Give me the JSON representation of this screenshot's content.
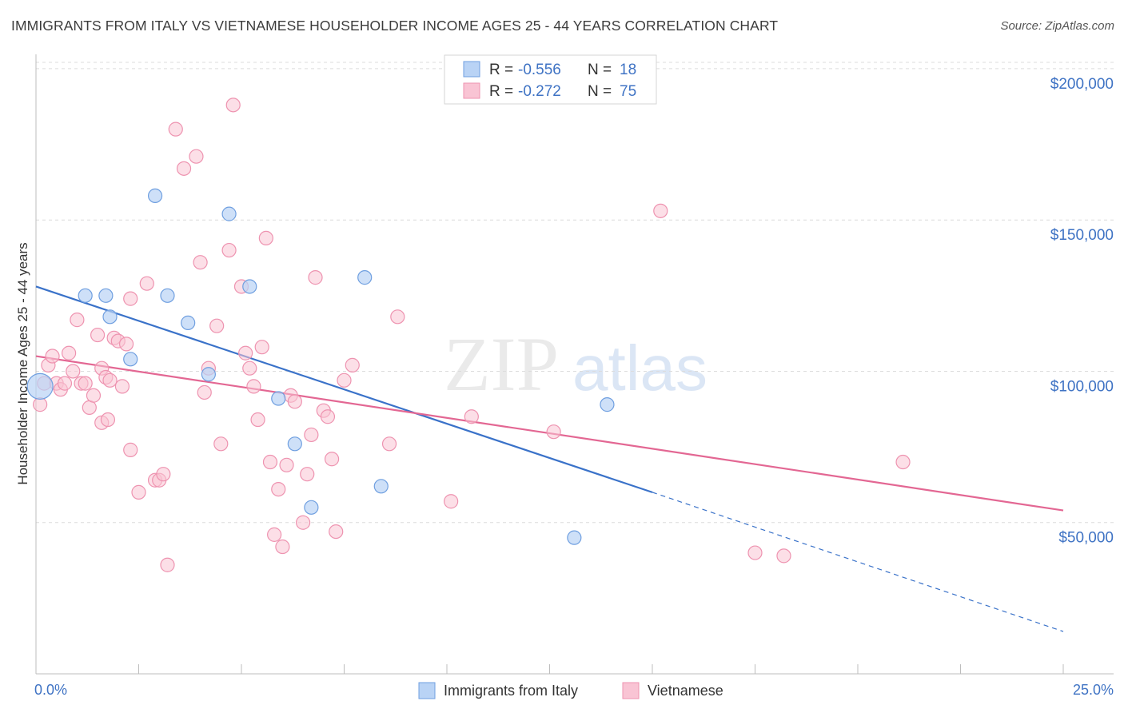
{
  "title": "IMMIGRANTS FROM ITALY VS VIETNAMESE HOUSEHOLDER INCOME AGES 25 - 44 YEARS CORRELATION CHART",
  "source": "Source: ZipAtlas.com",
  "watermark": {
    "zip": "ZIP",
    "atlas": "atlas"
  },
  "colors": {
    "italy_fill": "#b9d3f5",
    "italy_stroke": "#6f9fe0",
    "italy_line": "#3a72c9",
    "viet_fill": "#f9c4d4",
    "viet_stroke": "#ee93b0",
    "viet_line": "#e36793",
    "axis_label": "#3f73c4",
    "grid": "#dcdcdc"
  },
  "legend": {
    "rows": [
      {
        "r_label": "R =",
        "r_value": "-0.556",
        "n_label": "N =",
        "n_value": "18"
      },
      {
        "r_label": "R =",
        "r_value": "-0.272",
        "n_label": "N =",
        "n_value": "75"
      }
    ]
  },
  "bottom_legend": [
    "Immigrants from Italy",
    "Vietnamese"
  ],
  "chart_data": {
    "type": "scatter",
    "xlabel": "",
    "ylabel": "Householder Income Ages 25 - 44 years",
    "xlim": [
      0,
      25
    ],
    "ylim": [
      0,
      205000
    ],
    "x_tick_labels": [
      "0.0%",
      "25.0%"
    ],
    "y_ticks": [
      50000,
      100000,
      150000,
      200000
    ],
    "y_tick_labels": [
      "$50,000",
      "$100,000",
      "$150,000",
      "$200,000"
    ],
    "grid": true,
    "series": [
      {
        "name": "Immigrants from Italy",
        "points": [
          [
            0.1,
            95000
          ],
          [
            1.2,
            125000
          ],
          [
            1.7,
            125000
          ],
          [
            1.8,
            118000
          ],
          [
            2.3,
            104000
          ],
          [
            2.9,
            158000
          ],
          [
            3.2,
            125000
          ],
          [
            3.7,
            116000
          ],
          [
            4.2,
            99000
          ],
          [
            4.7,
            152000
          ],
          [
            5.2,
            128000
          ],
          [
            5.9,
            91000
          ],
          [
            6.3,
            76000
          ],
          [
            6.7,
            55000
          ],
          [
            8.0,
            131000
          ],
          [
            8.4,
            62000
          ],
          [
            13.1,
            45000
          ],
          [
            13.9,
            89000
          ]
        ],
        "trend": {
          "x": [
            0,
            15
          ],
          "y": [
            128000,
            60000
          ],
          "dashed_to": [
            25,
            14000
          ]
        }
      },
      {
        "name": "Vietnamese",
        "points": [
          [
            0.1,
            89000
          ],
          [
            0.2,
            96000
          ],
          [
            0.3,
            102000
          ],
          [
            0.4,
            105000
          ],
          [
            0.5,
            96000
          ],
          [
            0.6,
            94000
          ],
          [
            0.7,
            96000
          ],
          [
            0.8,
            106000
          ],
          [
            0.9,
            100000
          ],
          [
            1.0,
            117000
          ],
          [
            1.1,
            96000
          ],
          [
            1.2,
            96000
          ],
          [
            1.3,
            88000
          ],
          [
            1.4,
            92000
          ],
          [
            1.5,
            112000
          ],
          [
            1.6,
            101000
          ],
          [
            1.6,
            83000
          ],
          [
            1.7,
            98000
          ],
          [
            1.75,
            84000
          ],
          [
            1.8,
            97000
          ],
          [
            1.9,
            111000
          ],
          [
            2.0,
            110000
          ],
          [
            2.1,
            95000
          ],
          [
            2.2,
            109000
          ],
          [
            2.3,
            74000
          ],
          [
            2.3,
            124000
          ],
          [
            2.5,
            60000
          ],
          [
            2.7,
            129000
          ],
          [
            2.9,
            64000
          ],
          [
            3.0,
            64000
          ],
          [
            3.1,
            66000
          ],
          [
            3.2,
            36000
          ],
          [
            3.4,
            180000
          ],
          [
            3.6,
            167000
          ],
          [
            3.9,
            171000
          ],
          [
            4.0,
            136000
          ],
          [
            4.1,
            93000
          ],
          [
            4.2,
            101000
          ],
          [
            4.4,
            115000
          ],
          [
            4.5,
            76000
          ],
          [
            4.7,
            140000
          ],
          [
            4.8,
            188000
          ],
          [
            5.0,
            128000
          ],
          [
            5.1,
            106000
          ],
          [
            5.2,
            101000
          ],
          [
            5.3,
            95000
          ],
          [
            5.4,
            84000
          ],
          [
            5.5,
            108000
          ],
          [
            5.6,
            144000
          ],
          [
            5.7,
            70000
          ],
          [
            5.8,
            46000
          ],
          [
            5.9,
            61000
          ],
          [
            6.0,
            42000
          ],
          [
            6.1,
            69000
          ],
          [
            6.2,
            92000
          ],
          [
            6.3,
            90000
          ],
          [
            6.5,
            50000
          ],
          [
            6.6,
            66000
          ],
          [
            6.7,
            79000
          ],
          [
            6.8,
            131000
          ],
          [
            7.0,
            87000
          ],
          [
            7.1,
            85000
          ],
          [
            7.2,
            71000
          ],
          [
            7.3,
            47000
          ],
          [
            7.5,
            97000
          ],
          [
            7.7,
            102000
          ],
          [
            8.6,
            76000
          ],
          [
            8.8,
            118000
          ],
          [
            10.1,
            57000
          ],
          [
            10.6,
            85000
          ],
          [
            12.6,
            80000
          ],
          [
            15.2,
            153000
          ],
          [
            17.5,
            40000
          ],
          [
            18.2,
            39000
          ],
          [
            21.1,
            70000
          ]
        ],
        "trend": {
          "x": [
            0,
            25
          ],
          "y": [
            105000,
            54000
          ]
        }
      }
    ]
  }
}
